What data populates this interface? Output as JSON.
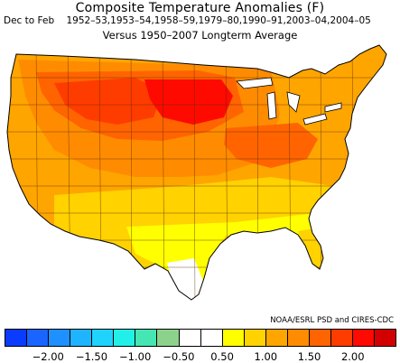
{
  "header": {
    "title": "Composite Temperature Anomalies (F)",
    "season": "Dec to Feb",
    "years": "1952–53,1953–54,1958–59,1979–80,1990–91,2003–04,2004–05",
    "baseline": "Versus 1950–2007 Longterm Average"
  },
  "credit": "NOAA/ESRL PSD and CIRES-CDC",
  "legend": {
    "colors": [
      "#0a3cff",
      "#1a64ff",
      "#1e90ff",
      "#1fb4ff",
      "#20d3ff",
      "#22f0e8",
      "#46e6b4",
      "#8cd28c",
      "#ffffff",
      "#ffffff",
      "#ffff00",
      "#ffd200",
      "#ffa500",
      "#ff8c00",
      "#ff6400",
      "#ff3c00",
      "#ff0a00",
      "#d20000"
    ],
    "ticks": [
      "−2.00",
      "−1.50",
      "−1.00",
      "−0.50",
      "0.50",
      "1.00",
      "1.50",
      "2.00"
    ]
  },
  "map": {
    "region": "Contiguous United States, climate divisions",
    "anomaly_levels": {
      "northern_plains": 2.0,
      "upper_midwest": 1.75,
      "northwest_interior": 1.75,
      "great_basin": 1.5,
      "central_plains": 1.25,
      "ohio_valley": 1.25,
      "northeast": 0.75,
      "southwest": 0.75,
      "southern_plains": 0.75,
      "southeast": 0.5,
      "gulf_coast_florida": 0.5,
      "south_texas": 0.25
    }
  }
}
